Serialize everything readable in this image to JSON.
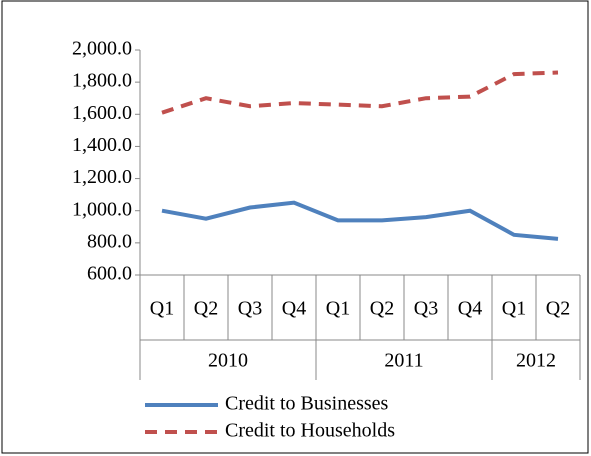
{
  "chart_data": {
    "type": "line",
    "categories": [
      "Q1",
      "Q2",
      "Q3",
      "Q4",
      "Q1",
      "Q2",
      "Q3",
      "Q4",
      "Q1",
      "Q2"
    ],
    "groups": [
      {
        "label": "2010",
        "count": 4
      },
      {
        "label": "2011",
        "count": 4
      },
      {
        "label": "2012",
        "count": 2
      }
    ],
    "series": [
      {
        "name": "Credit to Businesses",
        "color": "#4f81bd",
        "dash": false,
        "values": [
          1000,
          950,
          1020,
          1050,
          940,
          940,
          960,
          1000,
          850,
          825
        ]
      },
      {
        "name": "Credit to Households",
        "color": "#c0504d",
        "dash": true,
        "values": [
          1610,
          1700,
          1650,
          1670,
          1660,
          1650,
          1700,
          1710,
          1850,
          1860
        ]
      }
    ],
    "ylim": [
      600,
      2000
    ],
    "yticks": [
      {
        "value": 600,
        "label": "600.0"
      },
      {
        "value": 800,
        "label": "800.0"
      },
      {
        "value": 1000,
        "label": "1,000.0"
      },
      {
        "value": 1200,
        "label": "1,200.0"
      },
      {
        "value": 1400,
        "label": "1,400.0"
      },
      {
        "value": 1600,
        "label": "1,600.0"
      },
      {
        "value": 1800,
        "label": "1,800.0"
      },
      {
        "value": 2000,
        "label": "2,000.0"
      }
    ],
    "legend": "bottom"
  }
}
